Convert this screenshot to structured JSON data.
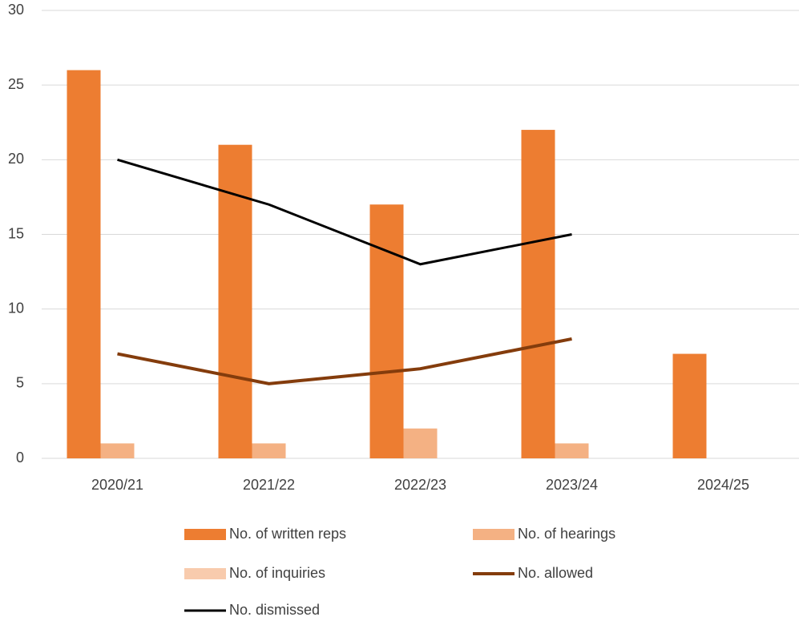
{
  "chart_data": {
    "type": "bar",
    "categories": [
      "2020/21",
      "2021/22",
      "2022/23",
      "2023/24",
      "2024/25"
    ],
    "series": [
      {
        "name": "No. of written reps",
        "type": "bar",
        "color": "#ed7d31",
        "values": [
          26,
          21,
          17,
          22,
          7
        ]
      },
      {
        "name": "No. of hearings",
        "type": "bar",
        "color": "#f4b183",
        "values": [
          1,
          1,
          2,
          1,
          0
        ]
      },
      {
        "name": "No. of inquiries",
        "type": "bar",
        "color": "#f8cbad",
        "values": [
          0,
          0,
          0,
          0,
          0
        ]
      },
      {
        "name": "No. allowed",
        "type": "line",
        "color": "#843c0c",
        "values": [
          7,
          5,
          6,
          8,
          null
        ]
      },
      {
        "name": "No. dismissed",
        "type": "line",
        "color": "#000000",
        "values": [
          20,
          17,
          13,
          15,
          null
        ]
      }
    ],
    "ylim": [
      0,
      30
    ],
    "yticks": [
      0,
      5,
      10,
      15,
      20,
      25,
      30
    ],
    "grid": true,
    "legend": "bottom"
  }
}
